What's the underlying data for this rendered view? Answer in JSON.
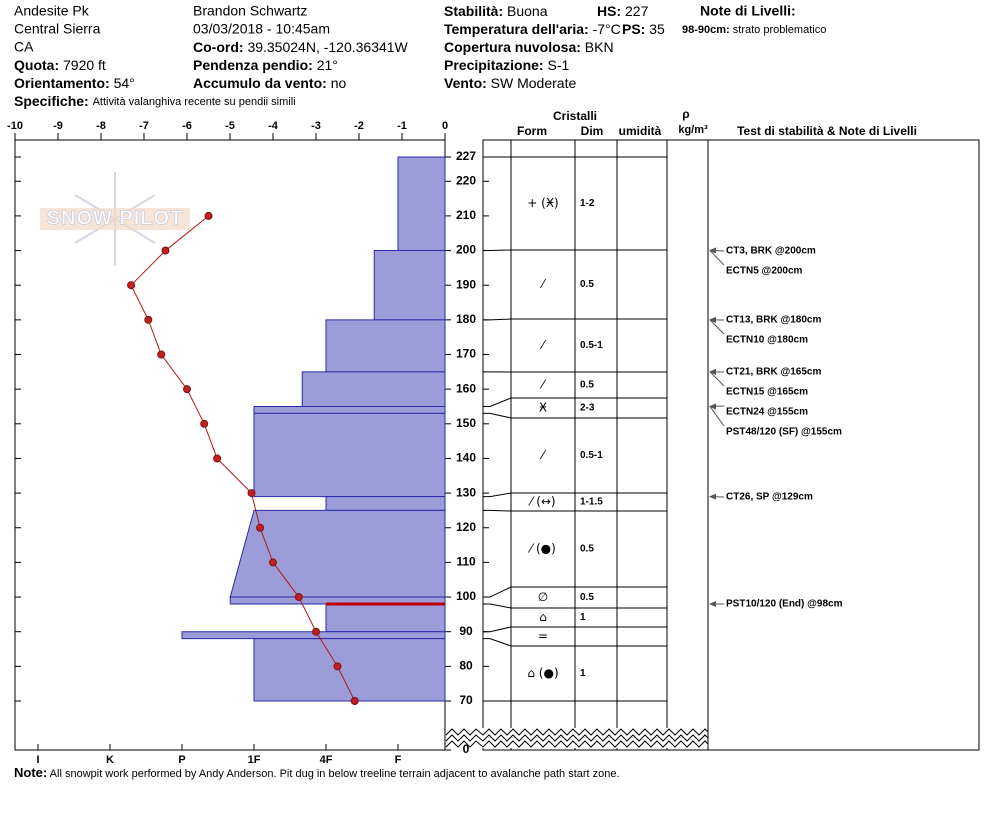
{
  "header": {
    "col1": [
      "Andesite Pk",
      "Central Sierra",
      "CA",
      {
        "label": "Quota:",
        "value": "7920 ft"
      },
      {
        "label": "Orientamento:",
        "value": "54°"
      }
    ],
    "col2": [
      "Brandon Schwartz",
      "03/03/2018 - 10:45am",
      {
        "label": "Co-ord:",
        "value": "39.35024N, -120.36341W"
      },
      {
        "label": "Pendenza pendio:",
        "value": "21°"
      },
      {
        "label": "Accumulo da vento:",
        "value": "no"
      }
    ],
    "col3": [
      {
        "label": "Stabilità:",
        "value": "Buona"
      },
      {
        "label": "Temperatura dell'aria:",
        "value": "-7°C"
      },
      {
        "label": "Copertura nuvolosa:",
        "value": "BKN"
      },
      {
        "label": "Precipitazione:",
        "value": "S-1"
      },
      {
        "label": "Vento:",
        "value": "SW Moderate"
      }
    ],
    "hs": {
      "label": "HS:",
      "value": "227"
    },
    "ps": {
      "label": "PS:",
      "value": "35"
    },
    "notes_title": "Note di Livelli:",
    "layer_note": {
      "label": "98-90cm:",
      "value": "strato problematico"
    },
    "specifiche": {
      "label": "Specifiche:",
      "value": "Attività valanghiva recente su pendii simili"
    }
  },
  "watermark": "SNOW PILOT",
  "temperature_axis": {
    "lim": [
      -10,
      0
    ],
    "ticks": [
      -10,
      -9,
      -8,
      -7,
      -6,
      -5,
      -4,
      -3,
      -2,
      -1,
      0
    ]
  },
  "hardness_axis": {
    "ticks": [
      {
        "value": 6,
        "label": "I"
      },
      {
        "value": 5,
        "label": "K"
      },
      {
        "value": 4,
        "label": "P"
      },
      {
        "value": 3,
        "label": "1F"
      },
      {
        "value": 2,
        "label": "4F"
      },
      {
        "value": 1,
        "label": "F"
      }
    ]
  },
  "depth_axis": {
    "ticks": [
      0,
      70,
      80,
      90,
      100,
      110,
      120,
      130,
      140,
      150,
      160,
      170,
      180,
      190,
      200,
      210,
      220,
      227
    ]
  },
  "temperature_profile": {
    "heights": [
      210,
      200,
      190,
      180,
      170,
      160,
      150,
      140,
      130,
      120,
      110,
      100,
      90,
      80,
      70
    ],
    "values": [
      -5.5,
      -6.5,
      -7.3,
      -6.9,
      -6.6,
      -6.0,
      -5.6,
      -5.3,
      -4.5,
      -4.3,
      -4.0,
      -3.4,
      -3.0,
      -2.5,
      -2.1
    ]
  },
  "layers": [
    {
      "top": 227,
      "bottom": 200,
      "hardness": 1,
      "form": "+ (Ӿ)",
      "size": "1-2"
    },
    {
      "top": 200,
      "bottom": 180,
      "hardness": 1.33,
      "form": "⁄",
      "size": "0.5"
    },
    {
      "top": 180,
      "bottom": 165,
      "hardness": 2,
      "form": "⁄",
      "size": "0.5-1"
    },
    {
      "top": 165,
      "bottom": 155,
      "hardness": 2.33,
      "form": "⁄",
      "size": "0.5"
    },
    {
      "top": 155,
      "bottom": 153,
      "hardness": 3,
      "form": "Ӿ",
      "size": "2-3"
    },
    {
      "top": 153,
      "bottom": 129,
      "hardness": 3,
      "form": "⁄",
      "size": "0.5-1"
    },
    {
      "top": 129,
      "bottom": 125,
      "hardness": 2,
      "form": "⁄ (↔)",
      "size": "1-1.5"
    },
    {
      "top": 125,
      "bottom": 100,
      "hardness": 3,
      "hardness_bottom": 3.33,
      "form": "⁄ (●)",
      "size": "0.5"
    },
    {
      "top": 100,
      "bottom": 98,
      "hardness": 3.33,
      "form": "∅",
      "size": "0.5"
    },
    {
      "top": 98,
      "bottom": 90,
      "hardness": 2,
      "form": "⌂",
      "size": "1",
      "problematic": true
    },
    {
      "top": 90,
      "bottom": 88,
      "hardness": 4,
      "form": "="
    },
    {
      "top": 88,
      "bottom": 70,
      "hardness": 3,
      "form": "⌂ (●)",
      "size": "1"
    }
  ],
  "columns": {
    "cristalli": "Cristalli",
    "form": "Form",
    "dim": "Dim",
    "umidita": "umidità",
    "rho": "ρ",
    "density_unit": "kg/m³",
    "tests": "Test di stabilità & Note di Livelli"
  },
  "tests": [
    {
      "text": "CT3, BRK @200cm",
      "height": 200
    },
    {
      "text": "ECTN5 @200cm",
      "height": 200
    },
    {
      "text": "CT13, BRK @180cm",
      "height": 180
    },
    {
      "text": "ECTN10 @180cm",
      "height": 180
    },
    {
      "text": "CT21, BRK @165cm",
      "height": 165
    },
    {
      "text": "ECTN15 @165cm",
      "height": 165
    },
    {
      "text": "ECTN24 @155cm",
      "height": 155
    },
    {
      "text": "PST48/120 (SF) @155cm",
      "height": 155
    },
    {
      "text": "CT26, SP @129cm",
      "height": 129
    },
    {
      "text": "PST10/120 (End) @98cm",
      "height": 98
    }
  ],
  "footer": {
    "label": "Note:",
    "value": "All snowpit work performed by Andy Anderson. Pit dug in below treeline terrain adjacent to avalanche path start zone."
  }
}
